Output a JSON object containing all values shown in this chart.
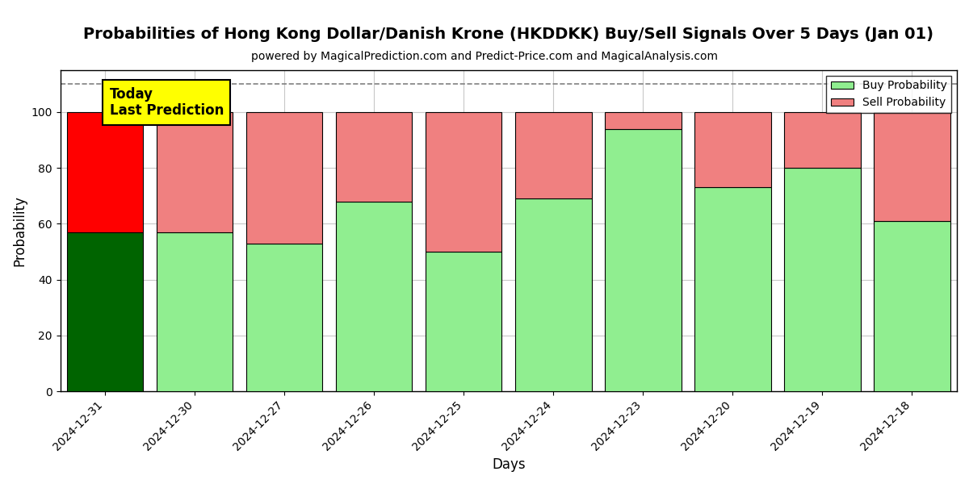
{
  "title": "Probabilities of Hong Kong Dollar/Danish Krone (HKDDKK) Buy/Sell Signals Over 5 Days (Jan 01)",
  "subtitle": "powered by MagicalPrediction.com and Predict-Price.com and MagicalAnalysis.com",
  "xlabel": "Days",
  "ylabel": "Probability",
  "dates": [
    "2024-12-31",
    "2024-12-30",
    "2024-12-27",
    "2024-12-26",
    "2024-12-25",
    "2024-12-24",
    "2024-12-23",
    "2024-12-20",
    "2024-12-19",
    "2024-12-18"
  ],
  "buy_values": [
    57,
    57,
    53,
    68,
    50,
    69,
    94,
    73,
    80,
    61
  ],
  "sell_values": [
    43,
    43,
    47,
    32,
    50,
    31,
    6,
    27,
    20,
    39
  ],
  "today_buy_color": "#006400",
  "today_sell_color": "#FF0000",
  "buy_color": "#90EE90",
  "sell_color": "#F08080",
  "bar_edge_color": "#000000",
  "today_annotation_bg": "#FFFF00",
  "today_annotation_text": "Today\nLast Prediction",
  "ylim": [
    0,
    115
  ],
  "dashed_line_y": 110,
  "legend_buy_label": "Buy Probability",
  "legend_sell_label": "Sell Probability",
  "grid_color": "#C8C8C8",
  "yticks": [
    0,
    20,
    40,
    60,
    80,
    100
  ],
  "bar_width": 0.85,
  "title_fontsize": 14,
  "subtitle_fontsize": 10,
  "axis_label_fontsize": 12,
  "tick_fontsize": 10,
  "legend_fontsize": 10,
  "annotation_fontsize": 12,
  "plot_bg_color": "#FFFFFF",
  "fig_bg_color": "#FFFFFF"
}
